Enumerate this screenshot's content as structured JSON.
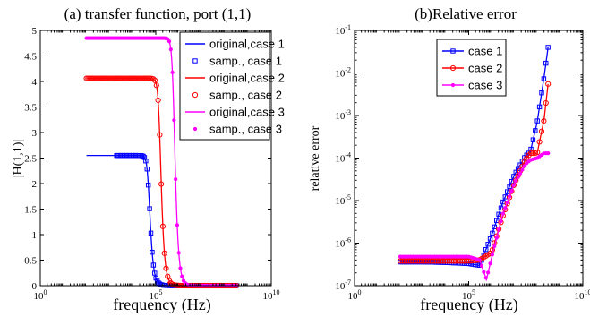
{
  "chart_data": [
    {
      "type": "line",
      "title": "(a) transfer function, port (1,1)",
      "xlabel": "frequency (Hz)",
      "ylabel": "|H(1,1)|",
      "xscale": "log",
      "xlim": [
        1,
        10000000000
      ],
      "ylim": [
        0,
        5
      ],
      "x_ticks": [
        {
          "value": 1,
          "base": "10",
          "exp": "0"
        },
        {
          "value": 100000,
          "base": "10",
          "exp": "5"
        },
        {
          "value": 10000000000,
          "base": "10",
          "exp": "10"
        }
      ],
      "y_ticks": [
        {
          "value": 0,
          "label": "0"
        },
        {
          "value": 0.5,
          "label": "0.5"
        },
        {
          "value": 1,
          "label": "1"
        },
        {
          "value": 1.5,
          "label": "1.5"
        },
        {
          "value": 2,
          "label": "2"
        },
        {
          "value": 2.5,
          "label": "2.5"
        },
        {
          "value": 3,
          "label": "3"
        },
        {
          "value": 3.5,
          "label": "3.5"
        },
        {
          "value": 4,
          "label": "4"
        },
        {
          "value": 4.5,
          "label": "4.5"
        },
        {
          "value": 5,
          "label": "5"
        }
      ],
      "grid": false,
      "legend_position": "top-right",
      "series": [
        {
          "name": "original,case 1",
          "kind": "line",
          "color": "#0000ff",
          "dc": 2.55,
          "fc": 50000,
          "order": 4,
          "x_range": [
            100,
            300000000
          ]
        },
        {
          "name": "samp., case 1",
          "kind": "marker",
          "marker": "square",
          "color": "#0000ff",
          "dc": 2.55,
          "fc": 50000,
          "order": 4,
          "x_range": [
            2000,
            300000000
          ]
        },
        {
          "name": "original,case 2",
          "kind": "line",
          "color": "#ff0000",
          "dc": 4.06,
          "fc": 150000,
          "order": 4,
          "x_range": [
            100,
            300000000
          ]
        },
        {
          "name": "samp., case 2",
          "kind": "marker",
          "marker": "circle",
          "color": "#ff0000",
          "dc": 4.06,
          "fc": 150000,
          "order": 4,
          "x_range": [
            100,
            300000000
          ]
        },
        {
          "name": "original,case 3",
          "kind": "line",
          "color": "#ff00ff",
          "dc": 4.85,
          "fc": 600000,
          "order": 4,
          "x_range": [
            100,
            300000000
          ]
        },
        {
          "name": "samp., case 3",
          "kind": "marker",
          "marker": "dot",
          "color": "#ff00ff",
          "dc": 4.85,
          "fc": 600000,
          "order": 4,
          "x_range": [
            100,
            300000000
          ]
        }
      ]
    },
    {
      "type": "line",
      "title": "(b)Relative error",
      "xlabel": "frequency (Hz)",
      "ylabel": "relative error",
      "xscale": "log",
      "yscale": "log",
      "xlim": [
        1,
        10000000000
      ],
      "ylim": [
        1e-07,
        0.1
      ],
      "x_ticks": [
        {
          "value": 1,
          "base": "10",
          "exp": "0"
        },
        {
          "value": 100000,
          "base": "10",
          "exp": "5"
        },
        {
          "value": 10000000000,
          "base": "10",
          "exp": "10"
        }
      ],
      "y_ticks": [
        {
          "value": 0.1,
          "base": "10",
          "exp": "-1"
        },
        {
          "value": 0.01,
          "base": "10",
          "exp": "-2"
        },
        {
          "value": 0.001,
          "base": "10",
          "exp": "-3"
        },
        {
          "value": 0.0001,
          "base": "10",
          "exp": "-4"
        },
        {
          "value": 1e-05,
          "base": "10",
          "exp": "-5"
        },
        {
          "value": 1e-06,
          "base": "10",
          "exp": "-6"
        },
        {
          "value": 1e-07,
          "base": "10",
          "exp": "-7"
        }
      ],
      "grid": false,
      "legend_position": "top-center",
      "series": [
        {
          "name": "case 1",
          "marker": "square",
          "color": "#0000ff",
          "x": [
            100,
            1000,
            10000,
            100000,
            300000,
            1000000,
            3000000,
            10000000,
            30000000,
            50000000,
            100000000,
            200000000,
            300000000
          ],
          "y": [
            3.6e-07,
            3.6e-07,
            3.5e-07,
            3.3e-07,
            3e-07,
            1.5e-06,
            8.5e-06,
            4e-05,
            0.00011,
            0.00014,
            0.0007,
            0.008,
            0.04
          ]
        },
        {
          "name": "case 2",
          "marker": "circle",
          "color": "#ff0000",
          "x": [
            100,
            1000,
            10000,
            100000,
            300000,
            1000000,
            3000000,
            10000000,
            30000000,
            50000000,
            100000000,
            200000000,
            300000000
          ],
          "y": [
            3.8e-07,
            3.8e-07,
            3.8e-07,
            3.8e-07,
            4e-07,
            6e-07,
            4e-06,
            2.5e-05,
            9e-05,
            0.00013,
            0.00013,
            0.0008,
            0.0055
          ]
        },
        {
          "name": "case 3",
          "marker": "dot",
          "color": "#ff00ff",
          "x": [
            100,
            1000,
            10000,
            100000,
            300000,
            600000,
            1000000,
            3000000,
            10000000,
            30000000,
            50000000,
            100000000,
            200000000,
            300000000
          ],
          "y": [
            4.8e-07,
            4.8e-07,
            4.8e-07,
            4.8e-07,
            4e-07,
            1.4e-07,
            4.5e-07,
            4.5e-06,
            2.5e-05,
            7e-05,
            9e-05,
            0.0001,
            0.00013,
            0.00013
          ]
        }
      ]
    }
  ]
}
